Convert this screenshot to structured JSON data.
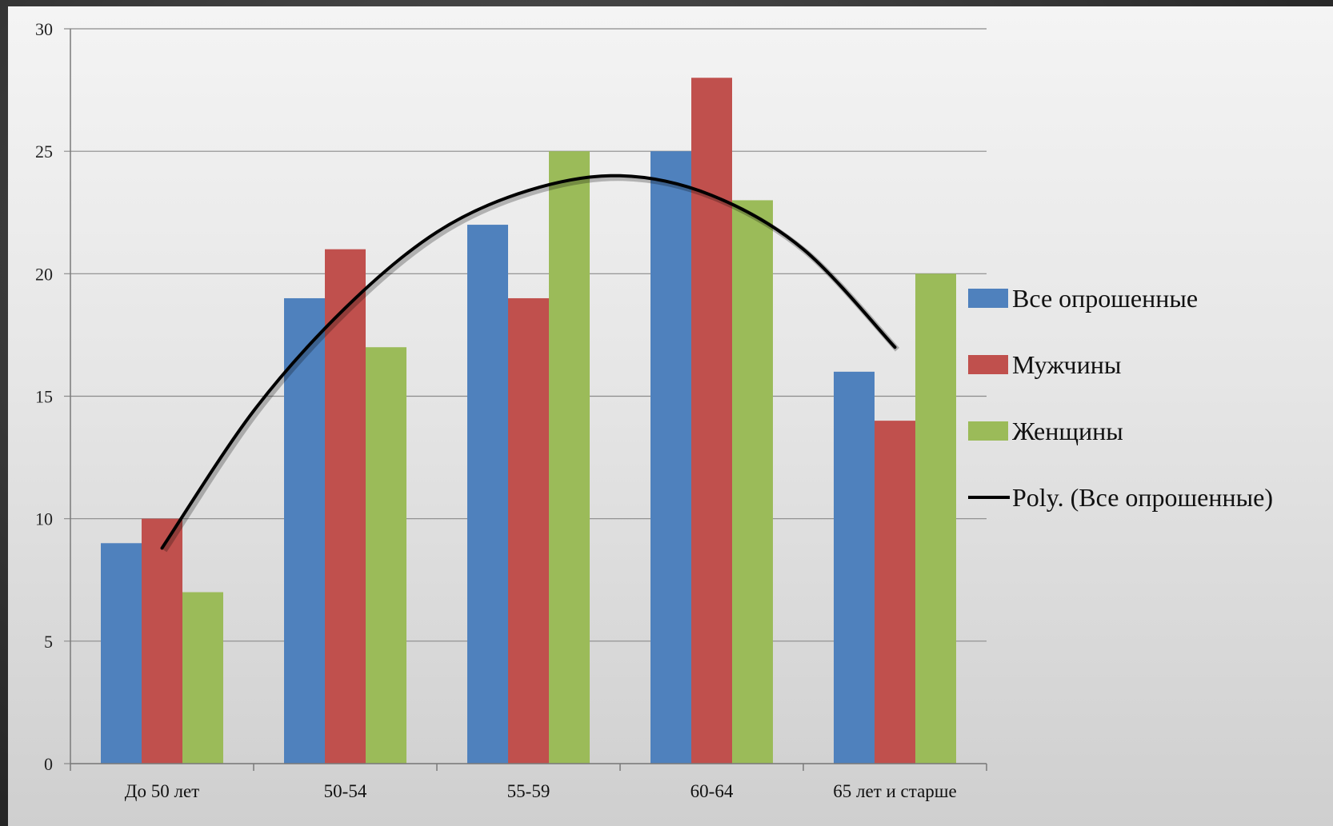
{
  "chart_data": {
    "type": "bar",
    "categories": [
      "До 50 лет",
      "50-54",
      "55-59",
      "60-64",
      "65 лет и старше"
    ],
    "series": [
      {
        "name": "Все опрошенные",
        "values": [
          9,
          19,
          22,
          25,
          16
        ],
        "color": "#4f81bd"
      },
      {
        "name": "Мужчины",
        "values": [
          10,
          21,
          19,
          28,
          14
        ],
        "color": "#c0504d"
      },
      {
        "name": "Женщины",
        "values": [
          7,
          17,
          25,
          23,
          20
        ],
        "color": "#9bbb59"
      }
    ],
    "trendline": {
      "name": "Poly. (Все опрошенные)",
      "type": "polynomial",
      "of_series": "Все опрошенные",
      "color": "#000000",
      "points": [
        [
          0,
          8.8
        ],
        [
          0.5,
          14.4
        ],
        [
          1,
          18.6
        ],
        [
          1.5,
          21.7
        ],
        [
          2,
          23.4
        ],
        [
          2.5,
          24.0
        ],
        [
          3,
          23.2
        ],
        [
          3.5,
          21.0
        ],
        [
          4,
          17.0
        ]
      ]
    },
    "yticks": [
      "0",
      "5",
      "10",
      "15",
      "20",
      "25",
      "30"
    ],
    "ylim": [
      0,
      30
    ],
    "grid": true,
    "legend_position": "right"
  }
}
